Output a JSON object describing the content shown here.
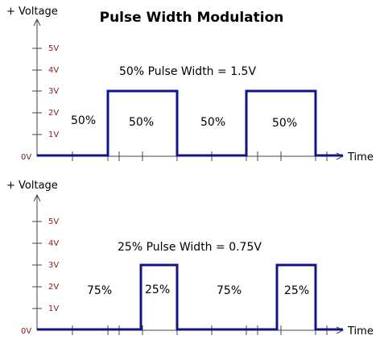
{
  "title": "Pulse Width Modulation",
  "colors": {
    "wave": "#10148a",
    "tick_label": "#8b1a1a",
    "axis": "#444444"
  },
  "panels": [
    {
      "y_axis_label": "+ Voltage",
      "x_axis_label": "Time",
      "heading": "50% Pulse Width = 1.5V",
      "zero_label": "0V",
      "tick_labels": [
        "1V",
        "2V",
        "3V",
        "4V",
        "5V"
      ],
      "pulse_level_volts": 3,
      "segments": [
        {
          "label": "50%",
          "level_volts": 0
        },
        {
          "label": "50%",
          "level_volts": 3
        },
        {
          "label": "50%",
          "level_volts": 0
        },
        {
          "label": "50%",
          "level_volts": 3
        }
      ]
    },
    {
      "y_axis_label": "+ Voltage",
      "x_axis_label": "Time",
      "heading": "25% Pulse Width = 0.75V",
      "zero_label": "0V",
      "tick_labels": [
        "1V",
        "2V",
        "3V",
        "4V",
        "5V"
      ],
      "pulse_level_volts": 3,
      "segments": [
        {
          "label": "75%",
          "level_volts": 0
        },
        {
          "label": "25%",
          "level_volts": 3
        },
        {
          "label": "75%",
          "level_volts": 0
        },
        {
          "label": "25%",
          "level_volts": 3
        }
      ]
    }
  ]
}
